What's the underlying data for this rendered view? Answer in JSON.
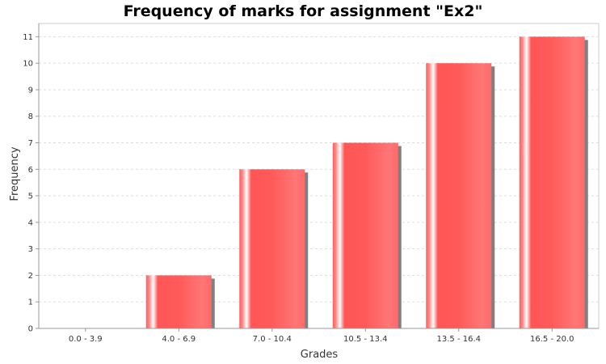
{
  "chart_data": {
    "type": "bar",
    "title": "Frequency of marks for assignment \"Ex2\"",
    "xlabel": "Grades",
    "ylabel": "Frequency",
    "categories": [
      "0.0 - 3.9",
      "4.0 - 6.9",
      "7.0 - 10.4",
      "10.5 - 13.4",
      "13.5 - 16.4",
      "16.5 - 20.0"
    ],
    "values": [
      0,
      2,
      6,
      7,
      10,
      11
    ],
    "ylim": [
      0,
      11.5
    ],
    "yticks": [
      "0",
      "1",
      "2",
      "3",
      "4",
      "5",
      "6",
      "7",
      "8",
      "9",
      "10",
      "11"
    ],
    "grid": true,
    "legend": "none"
  },
  "colors": {
    "bar_base": "#ff5555",
    "bar_highlight": "#ffffff",
    "shadow": "#808080",
    "grid": "#dddddd",
    "axis": "#999999",
    "plot_background": "#ffffff"
  }
}
